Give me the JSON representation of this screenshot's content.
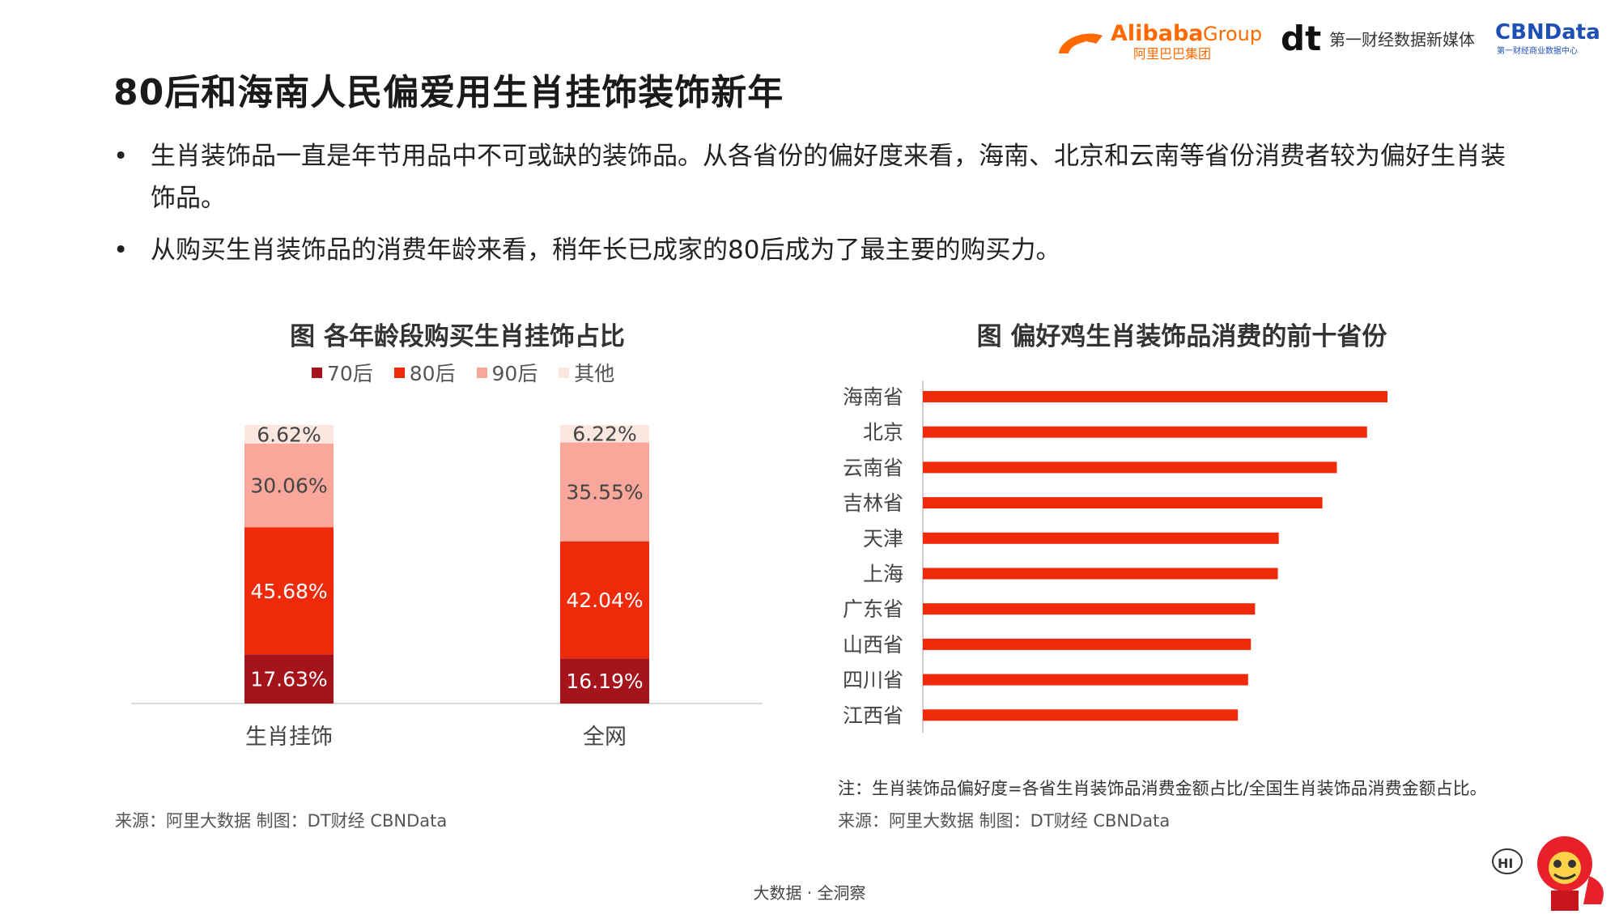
{
  "header": {
    "alibaba_name": "Alibaba",
    "alibaba_group": "Group",
    "alibaba_cn": "阿里巴巴集团",
    "dt_mark": "dt",
    "dt_text": "第一财经数据新媒体",
    "cbn_name": "CBNData",
    "cbn_sub": "第一财经商业数据中心"
  },
  "title": "80后和海南人民偏爱用生肖挂饰装饰新年",
  "bullets": [
    "生肖装饰品一直是年节用品中不可或缺的装饰品。从各省份的偏好度来看，海南、北京和云南等省份消费者较为偏好生肖装饰品。",
    "从购买生肖装饰品的消费年龄来看，稍年长已成家的80后成为了最主要的购买力。"
  ],
  "bullet_symbol": "•",
  "colors": {
    "c70": "#A5141A",
    "c80": "#EE2A0A",
    "c90": "#F9A79A",
    "cOther": "#FCE6E0",
    "bar": "#EE2A0A"
  },
  "chart_data": [
    {
      "type": "bar",
      "stacked": true,
      "title": "图 各年龄段购买生肖挂饰占比",
      "categories": [
        "生肖挂饰",
        "全网"
      ],
      "series": [
        {
          "name": "70后",
          "values": [
            17.63,
            16.19
          ],
          "labels": [
            "17.63%",
            "16.19%"
          ]
        },
        {
          "name": "80后",
          "values": [
            45.68,
            42.04
          ],
          "labels": [
            "45.68%",
            "42.04%"
          ]
        },
        {
          "name": "90后",
          "values": [
            30.06,
            35.55
          ],
          "labels": [
            "30.06%",
            "35.55%"
          ]
        },
        {
          "name": "其他",
          "values": [
            6.62,
            6.22
          ],
          "labels": [
            "6.62%",
            "6.22%"
          ]
        }
      ],
      "ylim": [
        0,
        100
      ],
      "legend_position": "top"
    },
    {
      "type": "bar",
      "orientation": "horizontal",
      "title": "图 偏好鸡生肖装饰品消费的前十省份",
      "categories": [
        "海南省",
        "北京",
        "云南省",
        "吉林省",
        "天津",
        "上海",
        "广东省",
        "山西省",
        "四川省",
        "江西省"
      ],
      "values": [
        100,
        95.6,
        89.1,
        86,
        76.6,
        76.4,
        71.5,
        70.6,
        70.0,
        67.8
      ],
      "xlim": [
        0,
        100
      ],
      "note": "注：生肖装饰品偏好度=各省生肖装饰品消费金额占比/全国生肖装饰品消费金额占比。"
    }
  ],
  "sources": {
    "left": "来源：阿里大数据    制图：DT财经    CBNData",
    "right": "来源：阿里大数据    制图：DT财经    CBNData"
  },
  "mascot_bubble": "HI",
  "footer": "大数据 · 全洞察"
}
